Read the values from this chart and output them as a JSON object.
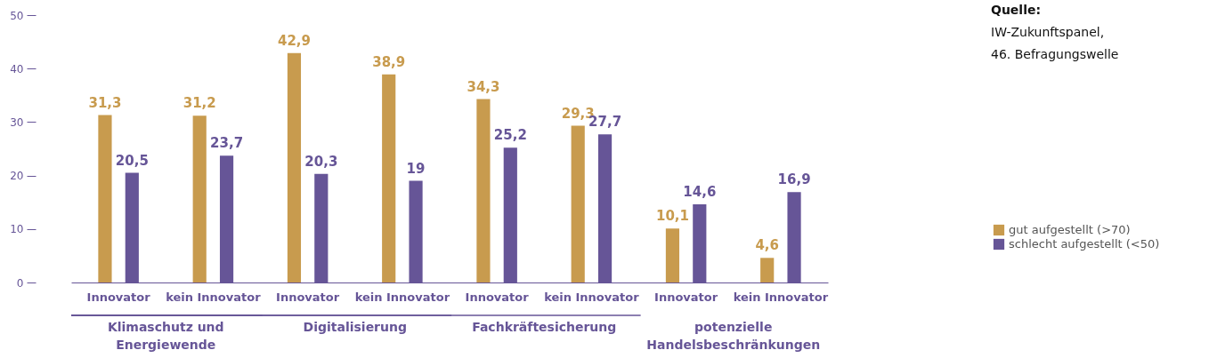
{
  "chart_data": {
    "type": "bar",
    "categories": [
      "Innovator",
      "kein Innovator",
      "Innovator",
      "kein Innovator",
      "Innovator",
      "kein Innovator",
      "Innovator",
      "kein Innovator"
    ],
    "series": [
      {
        "name": "gut aufgestellt (>70)",
        "color": "#c89b4e",
        "values": [
          31.3,
          31.2,
          42.9,
          38.9,
          34.3,
          29.3,
          10.1,
          4.6
        ],
        "value_labels": [
          "31,3",
          "31,2",
          "42,9",
          "38,9",
          "34,3",
          "29,3",
          "10,1",
          "4,6"
        ]
      },
      {
        "name": "schlecht aufgestellt (<50)",
        "color": "#665597",
        "values": [
          20.5,
          23.7,
          20.3,
          19,
          25.2,
          27.7,
          14.6,
          16.9
        ],
        "value_labels": [
          "20,5",
          "23,7",
          "20,3",
          "19",
          "25,2",
          "27,7",
          "14,6",
          "16,9"
        ]
      }
    ],
    "ylim": [
      0,
      50
    ],
    "yticks": [
      0,
      10,
      20,
      30,
      40,
      50
    ],
    "legend": "right",
    "annotations": [
      "Klimaschutz und Energiewende",
      "Digitalisierung",
      "Fachkräftesicherung",
      "potenzielle Handelsbeschränkungen",
      "Quelle:",
      "IW-Zukunftspanel,",
      "46. Befragungswelle"
    ]
  }
}
